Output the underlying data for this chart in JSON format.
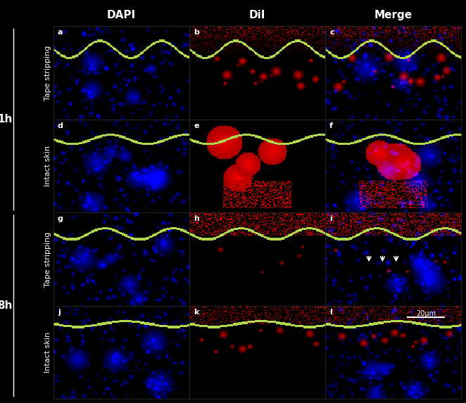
{
  "fig_width": 6.62,
  "fig_height": 5.73,
  "dpi": 100,
  "background_color": "#000000",
  "col_headers": [
    "DAPI",
    "DiI",
    "Merge"
  ],
  "col_header_fontsize": 11,
  "col_header_color": "#ffffff",
  "col_header_fontweight": "bold",
  "row_group_labels": [
    "1h",
    "8h"
  ],
  "row_sub_labels": [
    "Tape stripping",
    "Intact skin"
  ],
  "panel_labels": [
    "a",
    "b",
    "c",
    "d",
    "e",
    "f",
    "g",
    "h",
    "i",
    "j",
    "k",
    "l"
  ],
  "panel_label_color": "#ffffff",
  "panel_label_fontsize": 8,
  "scalebar_text": "20μm",
  "scalebar_color": "#ffffff",
  "scalebar_fontsize": 7,
  "row_label_color": "#ffffff",
  "row_label_fontsize": 8,
  "group_label_fontsize": 11,
  "group_label_color": "#ffffff",
  "group_label_fontweight": "bold"
}
